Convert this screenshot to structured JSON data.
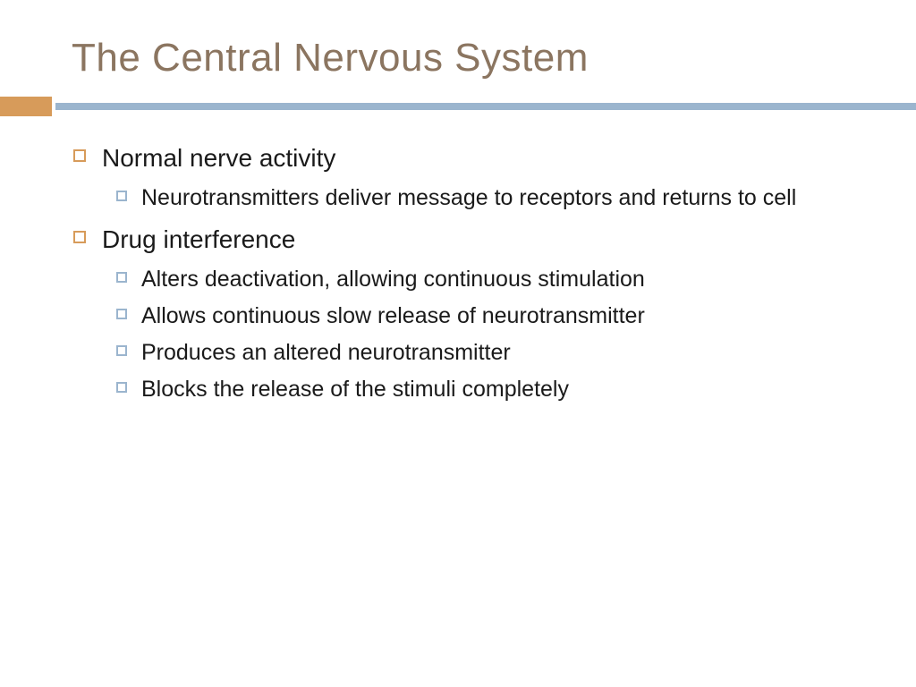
{
  "slide": {
    "title": "The Central Nervous System",
    "title_color": "#8b7560",
    "title_fontsize": 44,
    "divider": {
      "accent_block_color": "#d79b5a",
      "bar_color": "#9bb5ce"
    },
    "bullets": [
      {
        "text": "Normal nerve activity",
        "level": 1,
        "bullet_color": "#d79b5a",
        "children": [
          {
            "text": "Neurotransmitters deliver message to receptors and returns to cell",
            "level": 2,
            "bullet_color": "#9bb5ce"
          }
        ]
      },
      {
        "text": "Drug interference",
        "level": 1,
        "bullet_color": "#d79b5a",
        "children": [
          {
            "text": "Alters deactivation, allowing continuous stimulation",
            "level": 2,
            "bullet_color": "#9bb5ce"
          },
          {
            "text": "Allows continuous slow release of neurotransmitter",
            "level": 2,
            "bullet_color": "#9bb5ce"
          },
          {
            "text": "Produces an altered neurotransmitter",
            "level": 2,
            "bullet_color": "#9bb5ce"
          },
          {
            "text": "Blocks the release of the stimuli completely",
            "level": 2,
            "bullet_color": "#9bb5ce"
          }
        ]
      }
    ],
    "text_color": "#1a1a1a",
    "level1_fontsize": 28,
    "level2_fontsize": 25,
    "background_color": "#ffffff"
  }
}
